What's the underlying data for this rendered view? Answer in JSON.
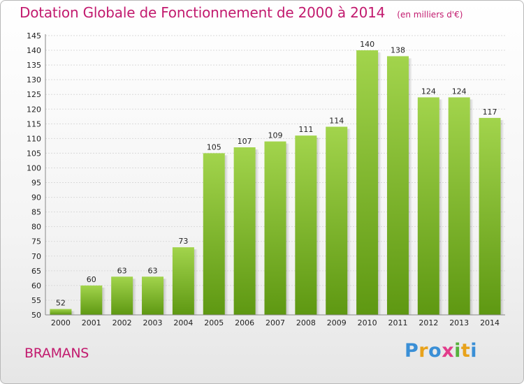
{
  "header": {
    "title": "Dotation Globale de Fonctionnement de 2000 à 2014",
    "subtitle": "(en milliers d'€)"
  },
  "footer": {
    "commune": "BRAMANS",
    "logo_text": "Proxiti"
  },
  "colors": {
    "bar_top": "#a2d44c",
    "bar_bottom": "#5e9812",
    "title": "#c21a6e",
    "grid": "#d9d9d9"
  },
  "chart_data": {
    "type": "bar",
    "title": "Dotation Globale de Fonctionnement de 2000 à 2014",
    "subtitle": "(en milliers d'€)",
    "categories": [
      "2000",
      "2001",
      "2002",
      "2003",
      "2004",
      "2005",
      "2006",
      "2007",
      "2008",
      "2009",
      "2010",
      "2011",
      "2012",
      "2013",
      "2014"
    ],
    "values": [
      52,
      60,
      63,
      63,
      73,
      105,
      107,
      109,
      111,
      114,
      140,
      138,
      124,
      124,
      117
    ],
    "xlabel": "",
    "ylabel": "",
    "ylim": [
      50,
      145
    ],
    "yticks": [
      50,
      55,
      60,
      65,
      70,
      75,
      80,
      85,
      90,
      95,
      100,
      105,
      110,
      115,
      120,
      125,
      130,
      135,
      140,
      145
    ],
    "grid": true,
    "legend": "none"
  }
}
